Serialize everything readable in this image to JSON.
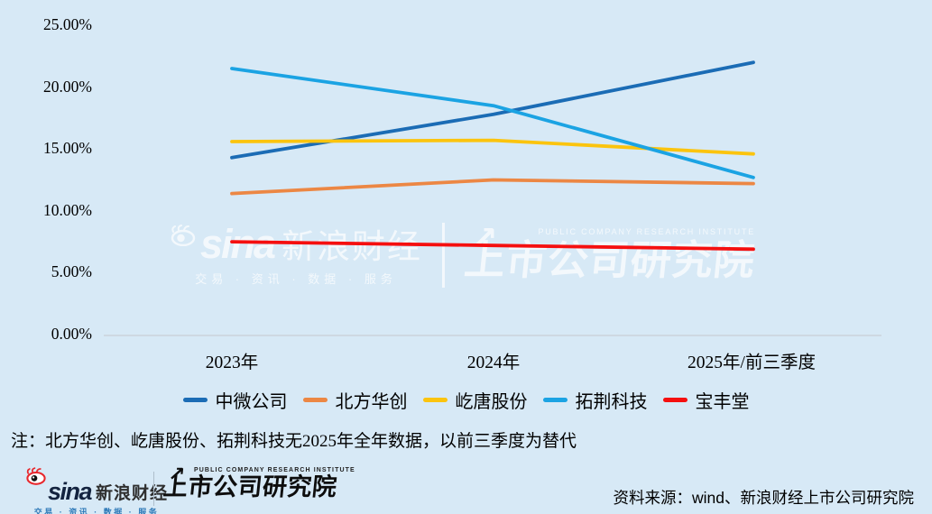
{
  "colors": {
    "background": "#d7e9f6",
    "axis_line": "#c9ced6"
  },
  "chart_data": {
    "type": "line",
    "categories": [
      "2023年",
      "2024年",
      "2025年/前三季度"
    ],
    "series": [
      {
        "name": "中微公司",
        "color": "#1b6cb5",
        "values": [
          14.3,
          17.8,
          22.0
        ]
      },
      {
        "name": "北方华创",
        "color": "#ec8744",
        "values": [
          11.4,
          12.5,
          12.2
        ]
      },
      {
        "name": "屹唐股份",
        "color": "#fbc40e",
        "values": [
          15.6,
          15.7,
          14.6
        ]
      },
      {
        "name": "拓荆科技",
        "color": "#1ba3e3",
        "values": [
          21.5,
          18.5,
          12.7
        ]
      },
      {
        "name": "宝丰堂",
        "color": "#f50f0f",
        "values": [
          7.5,
          7.2,
          6.9
        ]
      }
    ],
    "y_ticks": [
      {
        "label": "0.00%",
        "value": 0
      },
      {
        "label": "5.00%",
        "value": 5
      },
      {
        "label": "10.00%",
        "value": 10
      },
      {
        "label": "15.00%",
        "value": 15
      },
      {
        "label": "20.00%",
        "value": 20
      },
      {
        "label": "25.00%",
        "value": 25
      }
    ],
    "ylim": [
      0,
      25
    ],
    "grid": false,
    "legend_position": "bottom"
  },
  "note": "注：北方华创、屹唐股份、拓荆科技无2025年全年数据，以前三季度为替代",
  "brand": {
    "sina": "sina",
    "sina_cn": "新浪财经",
    "tagline": "交易 · 资讯 · 数据 · 服务",
    "institute_cn": "上市公司研究院",
    "institute_en": "PUBLIC COMPANY RESEARCH INSTITUTE",
    "arrow": "↗"
  },
  "source": "资料来源：wind、新浪财经上市公司研究院"
}
